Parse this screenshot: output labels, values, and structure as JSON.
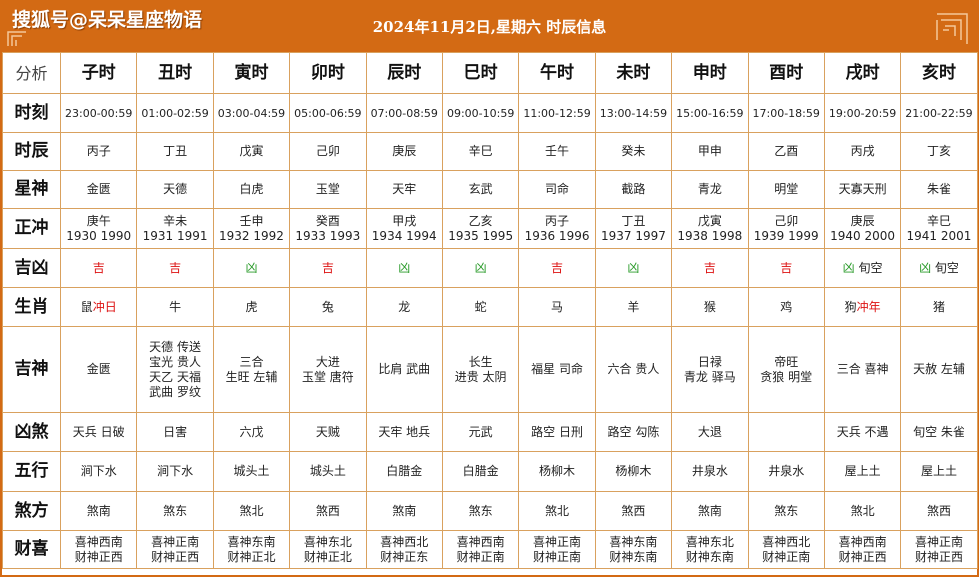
{
  "watermark": "搜狐号@呆呆星座物语",
  "title": "2024年11月2日,星期六 时辰信息",
  "colors": {
    "header": "#d36a14",
    "border": "#d9a15e",
    "ji": "#dd1111",
    "xiong": "#2a9b2a"
  },
  "corner_label": "分析",
  "columns": [
    "子时",
    "丑时",
    "寅时",
    "卯时",
    "辰时",
    "巳时",
    "午时",
    "未时",
    "申时",
    "酉时",
    "戌时",
    "亥时"
  ],
  "rows": {
    "shike": {
      "label": "时刻",
      "values": [
        "23:00-00:59",
        "01:00-02:59",
        "03:00-04:59",
        "05:00-06:59",
        "07:00-08:59",
        "09:00-10:59",
        "11:00-12:59",
        "13:00-14:59",
        "15:00-16:59",
        "17:00-18:59",
        "19:00-20:59",
        "21:00-22:59"
      ]
    },
    "shichen": {
      "label": "时辰",
      "values": [
        "丙子",
        "丁丑",
        "戊寅",
        "己卯",
        "庚辰",
        "辛巳",
        "壬午",
        "癸未",
        "甲申",
        "乙酉",
        "丙戌",
        "丁亥"
      ]
    },
    "xingshen": {
      "label": "星神",
      "values": [
        "金匮",
        "天德",
        "白虎",
        "玉堂",
        "天牢",
        "玄武",
        "司命",
        "截路",
        "青龙",
        "明堂",
        "天寡天刑",
        "朱雀"
      ]
    },
    "zhengchong": {
      "label": "正冲",
      "values": [
        [
          "庚午",
          "1930 1990"
        ],
        [
          "辛未",
          "1931 1991"
        ],
        [
          "壬申",
          "1932 1992"
        ],
        [
          "癸酉",
          "1933 1993"
        ],
        [
          "甲戌",
          "1934 1994"
        ],
        [
          "乙亥",
          "1935 1995"
        ],
        [
          "丙子",
          "1936 1996"
        ],
        [
          "丁丑",
          "1937 1997"
        ],
        [
          "戊寅",
          "1938 1998"
        ],
        [
          "己卯",
          "1939 1999"
        ],
        [
          "庚辰",
          "1940 2000"
        ],
        [
          "辛巳",
          "1941 2001"
        ]
      ]
    },
    "jixiong": {
      "label": "吉凶",
      "values": [
        {
          "v": "吉",
          "t": "ji",
          "x": ""
        },
        {
          "v": "吉",
          "t": "ji",
          "x": ""
        },
        {
          "v": "凶",
          "t": "xiong",
          "x": ""
        },
        {
          "v": "吉",
          "t": "ji",
          "x": ""
        },
        {
          "v": "凶",
          "t": "xiong",
          "x": ""
        },
        {
          "v": "凶",
          "t": "xiong",
          "x": ""
        },
        {
          "v": "吉",
          "t": "ji",
          "x": ""
        },
        {
          "v": "凶",
          "t": "xiong",
          "x": ""
        },
        {
          "v": "吉",
          "t": "ji",
          "x": ""
        },
        {
          "v": "吉",
          "t": "ji",
          "x": ""
        },
        {
          "v": "凶",
          "t": "xiong",
          "x": " 旬空"
        },
        {
          "v": "凶",
          "t": "xiong",
          "x": " 旬空"
        }
      ]
    },
    "shengxiao": {
      "label": "生肖",
      "values": [
        {
          "v": "鼠",
          "c": "冲日"
        },
        {
          "v": "牛",
          "c": ""
        },
        {
          "v": "虎",
          "c": ""
        },
        {
          "v": "兔",
          "c": ""
        },
        {
          "v": "龙",
          "c": ""
        },
        {
          "v": "蛇",
          "c": ""
        },
        {
          "v": "马",
          "c": ""
        },
        {
          "v": "羊",
          "c": ""
        },
        {
          "v": "猴",
          "c": ""
        },
        {
          "v": "鸡",
          "c": ""
        },
        {
          "v": "狗",
          "c": "冲年"
        },
        {
          "v": "猪",
          "c": ""
        }
      ]
    },
    "jishen": {
      "label": "吉神",
      "values": [
        [
          "金匮"
        ],
        [
          "天德 传送",
          "宝光 贵人",
          "天乙 天福",
          "武曲 罗纹"
        ],
        [
          "三合",
          "生旺 左辅"
        ],
        [
          "大进",
          "玉堂 唐符"
        ],
        [
          "比肩 武曲"
        ],
        [
          "长生",
          "进贵 太阴"
        ],
        [
          "福星 司命"
        ],
        [
          "六合 贵人"
        ],
        [
          "日禄",
          "青龙 驿马"
        ],
        [
          "帝旺",
          "贪狼 明堂"
        ],
        [
          "三合 喜神"
        ],
        [
          "天赦 左辅"
        ]
      ]
    },
    "xiongsha": {
      "label": "凶煞",
      "values": [
        "天兵 日破",
        "日害",
        "六戊",
        "天贼",
        "天牢 地兵",
        "元武",
        "路空 日刑",
        "路空 勾陈",
        "大退",
        "",
        "天兵 不遇",
        "旬空 朱雀"
      ]
    },
    "wuxing": {
      "label": "五行",
      "values": [
        "涧下水",
        "涧下水",
        "城头土",
        "城头土",
        "白腊金",
        "白腊金",
        "杨柳木",
        "杨柳木",
        "井泉水",
        "井泉水",
        "屋上土",
        "屋上土"
      ]
    },
    "shafang": {
      "label": "煞方",
      "values": [
        "煞南",
        "煞东",
        "煞北",
        "煞西",
        "煞南",
        "煞东",
        "煞北",
        "煞西",
        "煞南",
        "煞东",
        "煞北",
        "煞西"
      ]
    },
    "caixi": {
      "label": "财喜",
      "values": [
        [
          "喜神西南",
          "财神正西"
        ],
        [
          "喜神正南",
          "财神正西"
        ],
        [
          "喜神东南",
          "财神正北"
        ],
        [
          "喜神东北",
          "财神正北"
        ],
        [
          "喜神西北",
          "财神正东"
        ],
        [
          "喜神西南",
          "财神正南"
        ],
        [
          "喜神正南",
          "财神正南"
        ],
        [
          "喜神东南",
          "财神东南"
        ],
        [
          "喜神东北",
          "财神东南"
        ],
        [
          "喜神西北",
          "财神正南"
        ],
        [
          "喜神西南",
          "财神正西"
        ],
        [
          "喜神正南",
          "财神正西"
        ]
      ]
    }
  }
}
